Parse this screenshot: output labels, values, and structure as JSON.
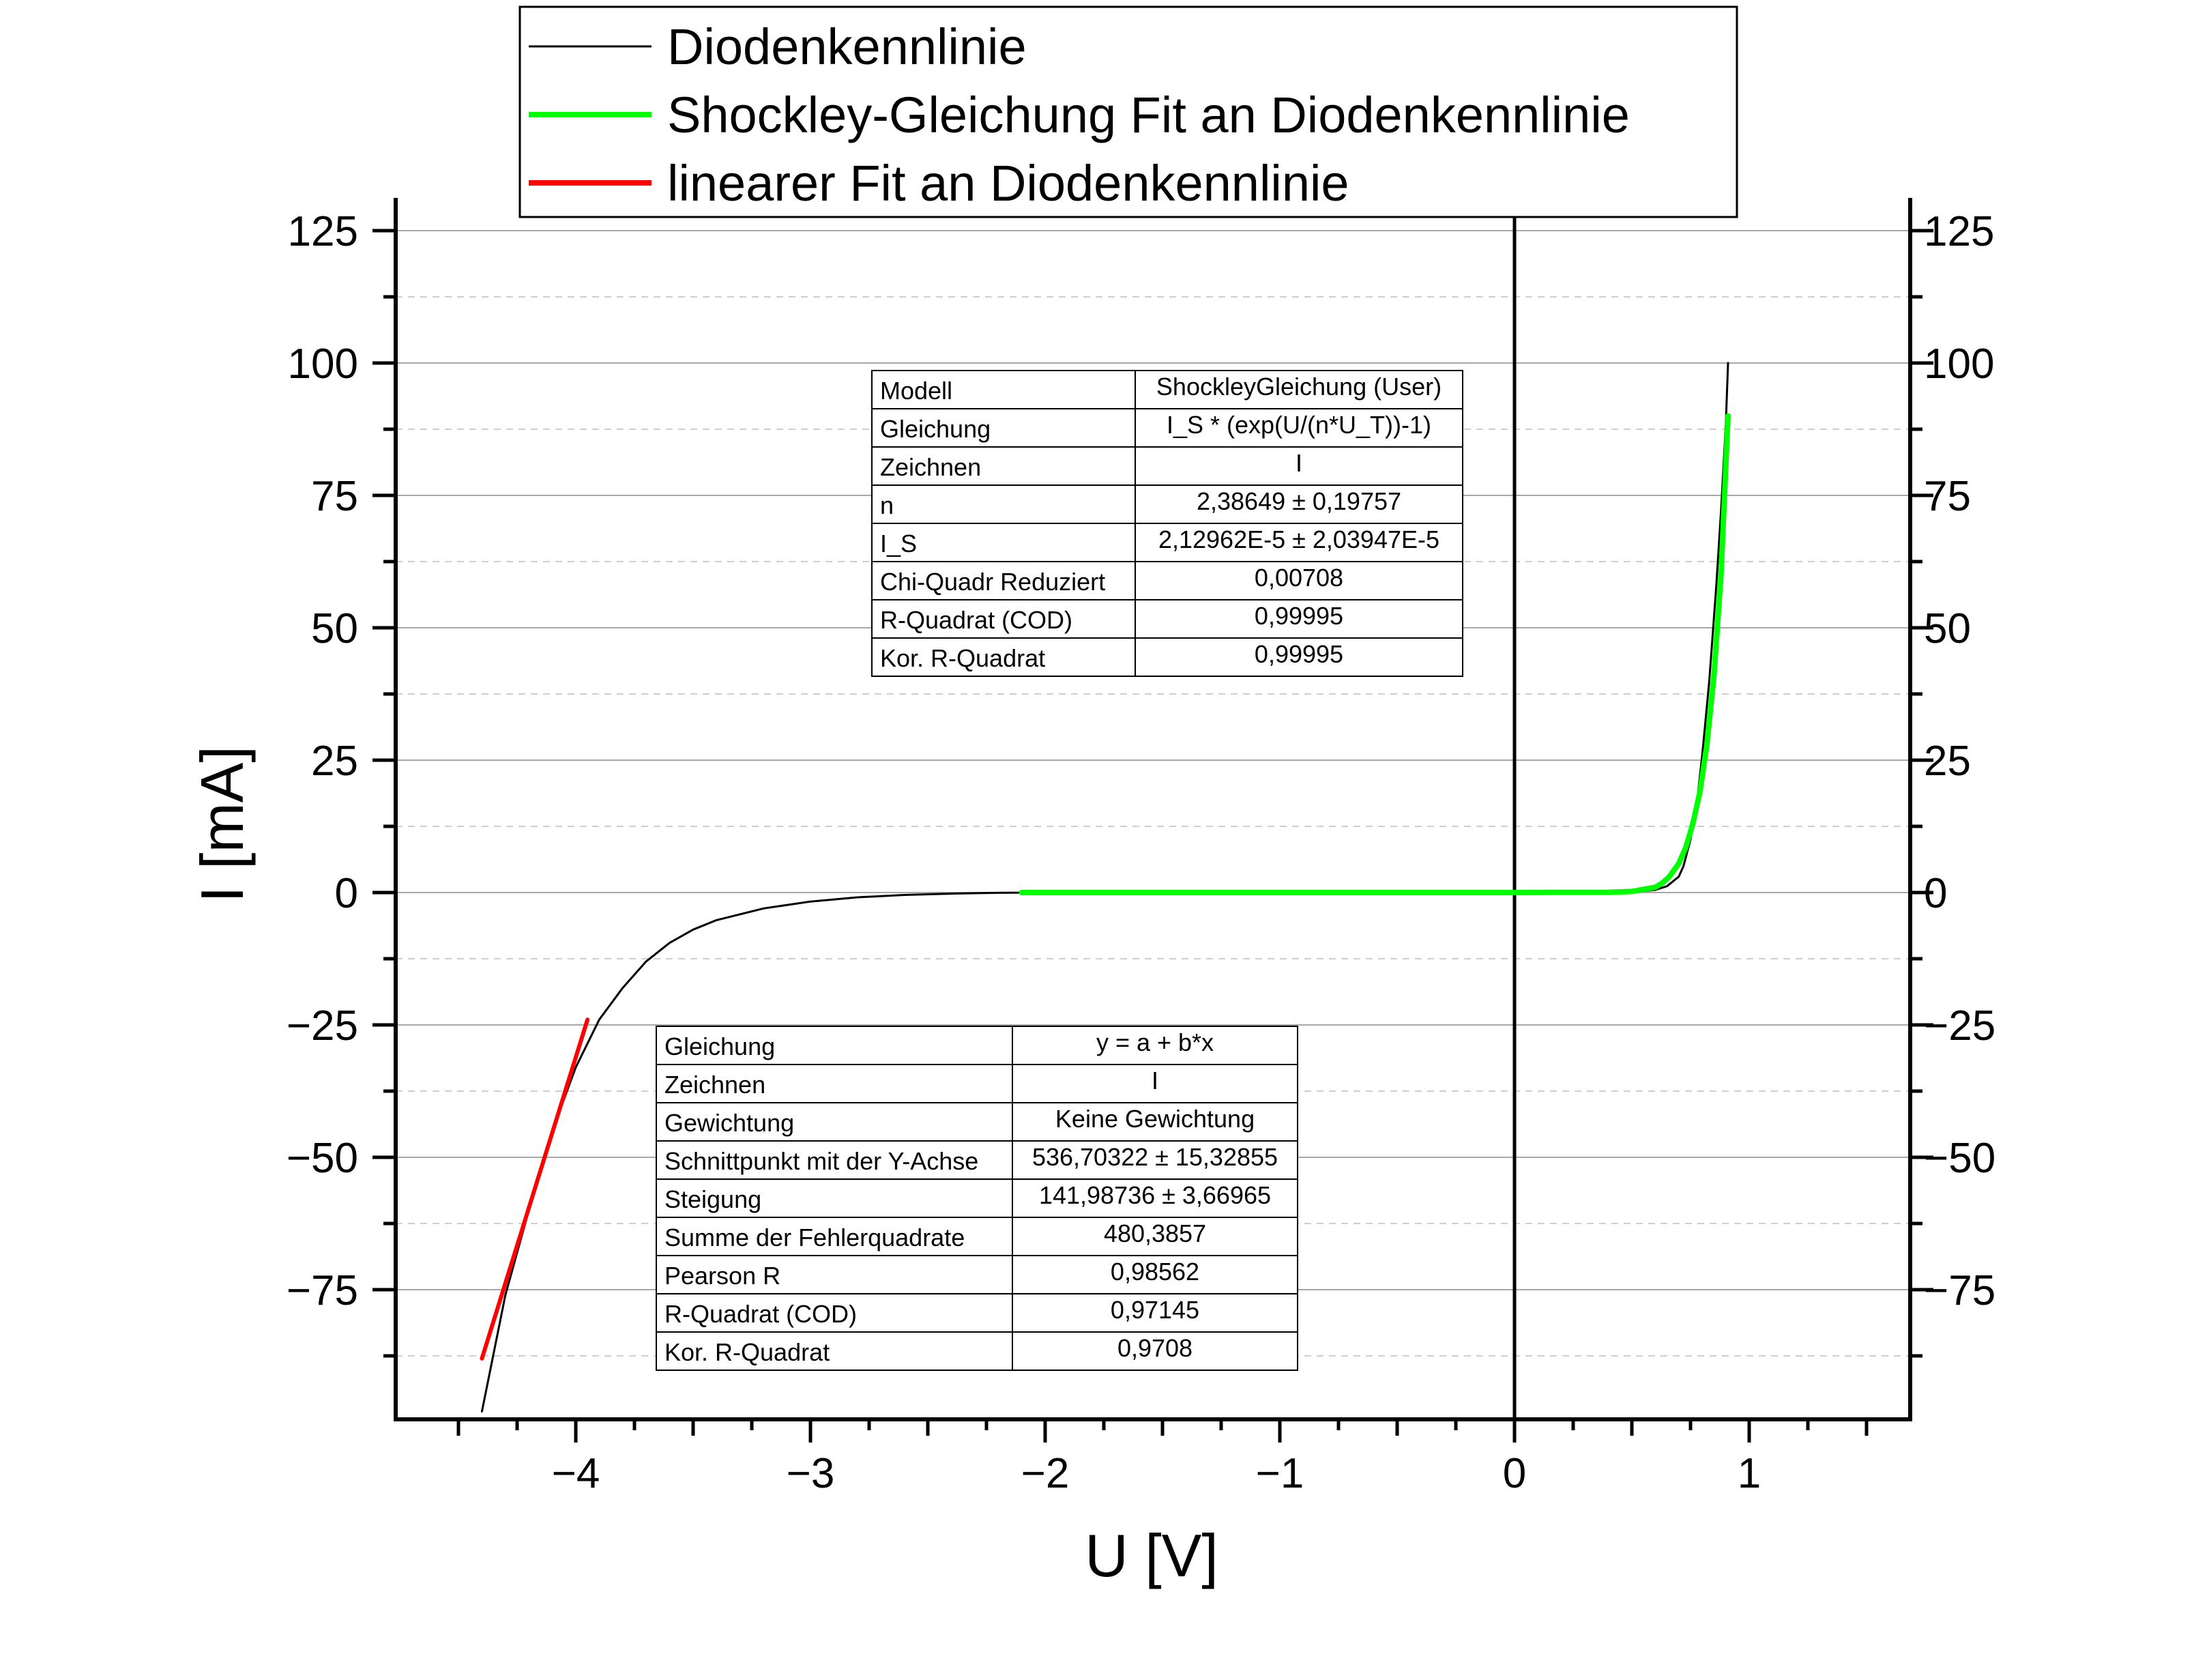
{
  "chart_data": {
    "type": "line",
    "xlabel": "U [V]",
    "ylabel": "I [mA]",
    "xlim": [
      -4.75,
      1.75
    ],
    "ylim": [
      -99,
      131
    ],
    "grid": true,
    "legend_position": "top",
    "x_ticks": [
      -4,
      -3,
      -2,
      -1,
      0,
      1
    ],
    "x_tick_labels": [
      "−4",
      "−3",
      "−2",
      "−1",
      "0",
      "1"
    ],
    "y_ticks": [
      125,
      100,
      75,
      50,
      25,
      0,
      -25,
      -50,
      -75
    ],
    "y_tick_labels": [
      "125",
      "100",
      "75",
      "50",
      "25",
      "0",
      "−25",
      "−50",
      "−75"
    ],
    "series": [
      {
        "name": "Diodenkennlinie",
        "color": "#000000",
        "x": [
          -4.4,
          -4.3,
          -4.2,
          -4.1,
          -4.0,
          -3.9,
          -3.8,
          -3.7,
          -3.6,
          -3.5,
          -3.4,
          -3.2,
          -3.0,
          -2.8,
          -2.6,
          -2.4,
          -2.2,
          -2.0,
          -1.0,
          0.0,
          0.4,
          0.5,
          0.6,
          0.65,
          0.7,
          0.72,
          0.75,
          0.78,
          0.8,
          0.83,
          0.86,
          0.88,
          0.9,
          0.91
        ],
        "y": [
          -98,
          -76,
          -60,
          -45,
          -33,
          -24,
          -18,
          -13,
          -9.5,
          -7,
          -5.2,
          -3,
          -1.7,
          -0.9,
          -0.45,
          -0.2,
          -0.05,
          0,
          0,
          0,
          0.01,
          0.1,
          0.5,
          1.2,
          3,
          5,
          10,
          18,
          26,
          40,
          58,
          72,
          88,
          100
        ]
      },
      {
        "name": "Shockley-Gleichung Fit an Diodenkennlinie",
        "color": "#00ff00",
        "x": [
          -2.1,
          -1.0,
          0.0,
          0.4,
          0.5,
          0.6,
          0.63,
          0.66,
          0.7,
          0.73,
          0.76,
          0.79,
          0.82,
          0.85,
          0.88,
          0.91
        ],
        "y": [
          0,
          0,
          0,
          0.05,
          0.2,
          1.0,
          1.8,
          3.0,
          5.5,
          8.5,
          13,
          19,
          28,
          41,
          60,
          90
        ]
      },
      {
        "name": "linearer Fit an Diodenkennlinie",
        "color": "#ff0000",
        "x": [
          -4.4,
          -3.95
        ],
        "y": [
          -88,
          -24
        ]
      }
    ]
  },
  "tables": {
    "shockley": {
      "rows": [
        [
          "Modell",
          "ShockleyGleichung (User)"
        ],
        [
          "Gleichung",
          "I_S * (exp(U/(n*U_T))-1)"
        ],
        [
          "Zeichnen",
          "I"
        ],
        [
          "n",
          "2,38649 ± 0,19757"
        ],
        [
          "I_S",
          "2,12962E-5 ± 2,03947E-5"
        ],
        [
          "Chi-Quadr Reduziert",
          "0,00708"
        ],
        [
          "R-Quadrat (COD)",
          "0,99995"
        ],
        [
          "Kor. R-Quadrat",
          "0,99995"
        ]
      ]
    },
    "linear": {
      "rows": [
        [
          "Gleichung",
          "y = a + b*x"
        ],
        [
          "Zeichnen",
          "I"
        ],
        [
          "Gewichtung",
          "Keine Gewichtung"
        ],
        [
          "Schnittpunkt mit der Y-Achse",
          "536,70322 ± 15,32855"
        ],
        [
          "Steigung",
          "141,98736 ± 3,66965"
        ],
        [
          "Summe der Fehlerquadrate",
          "480,3857"
        ],
        [
          "Pearson R",
          "0,98562"
        ],
        [
          "R-Quadrat (COD)",
          "0,97145"
        ],
        [
          "Kor. R-Quadrat",
          "0,9708"
        ]
      ]
    }
  }
}
